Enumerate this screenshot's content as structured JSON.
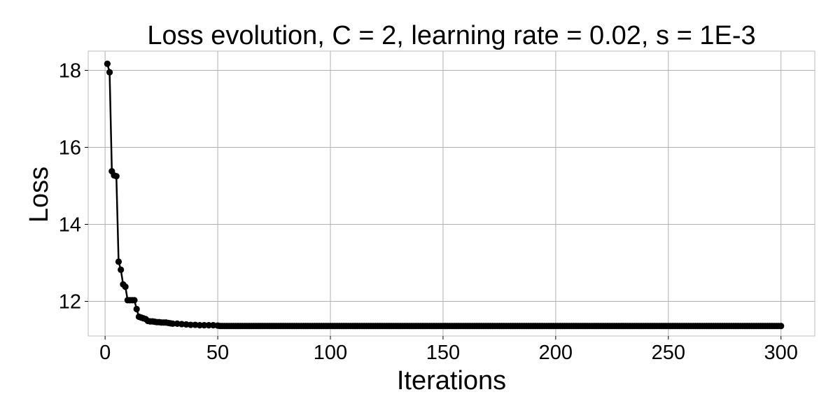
{
  "chart_data": {
    "type": "line",
    "title": "Loss evolution, C = 2, learning rate = 0.02, s = 1E-3",
    "xlabel": "Iterations",
    "ylabel": "Loss",
    "xlim": [
      -7.5,
      315
    ],
    "ylim": [
      11.1,
      18.5
    ],
    "xticks": [
      0,
      50,
      100,
      150,
      200,
      250,
      300
    ],
    "yticks": [
      12,
      14,
      16,
      18
    ],
    "grid": true,
    "legend": "none",
    "line_color": "#000000",
    "marker": "circle",
    "series": [
      {
        "x": [
          1,
          2,
          3,
          4,
          5,
          6,
          7,
          8,
          9,
          10,
          11,
          12,
          13,
          14,
          15,
          16,
          17,
          18,
          19,
          20,
          21,
          22,
          23,
          24,
          25,
          26,
          27,
          28,
          29,
          30,
          32,
          34,
          36,
          38,
          40,
          42,
          44,
          46,
          48,
          50,
          51
        ],
        "y": [
          18.17,
          17.95,
          15.38,
          15.27,
          15.25,
          13.03,
          12.82,
          12.44,
          12.38,
          12.03,
          12.03,
          12.03,
          12.03,
          11.8,
          11.6,
          11.58,
          11.56,
          11.54,
          11.49,
          11.48,
          11.48,
          11.47,
          11.46,
          11.46,
          11.45,
          11.45,
          11.45,
          11.44,
          11.43,
          11.42,
          11.42,
          11.41,
          11.4,
          11.39,
          11.39,
          11.38,
          11.38,
          11.38,
          11.38,
          11.37,
          11.36
        ],
        "tail": {
          "from": 52,
          "to": 300,
          "y": 11.36
        }
      }
    ]
  }
}
